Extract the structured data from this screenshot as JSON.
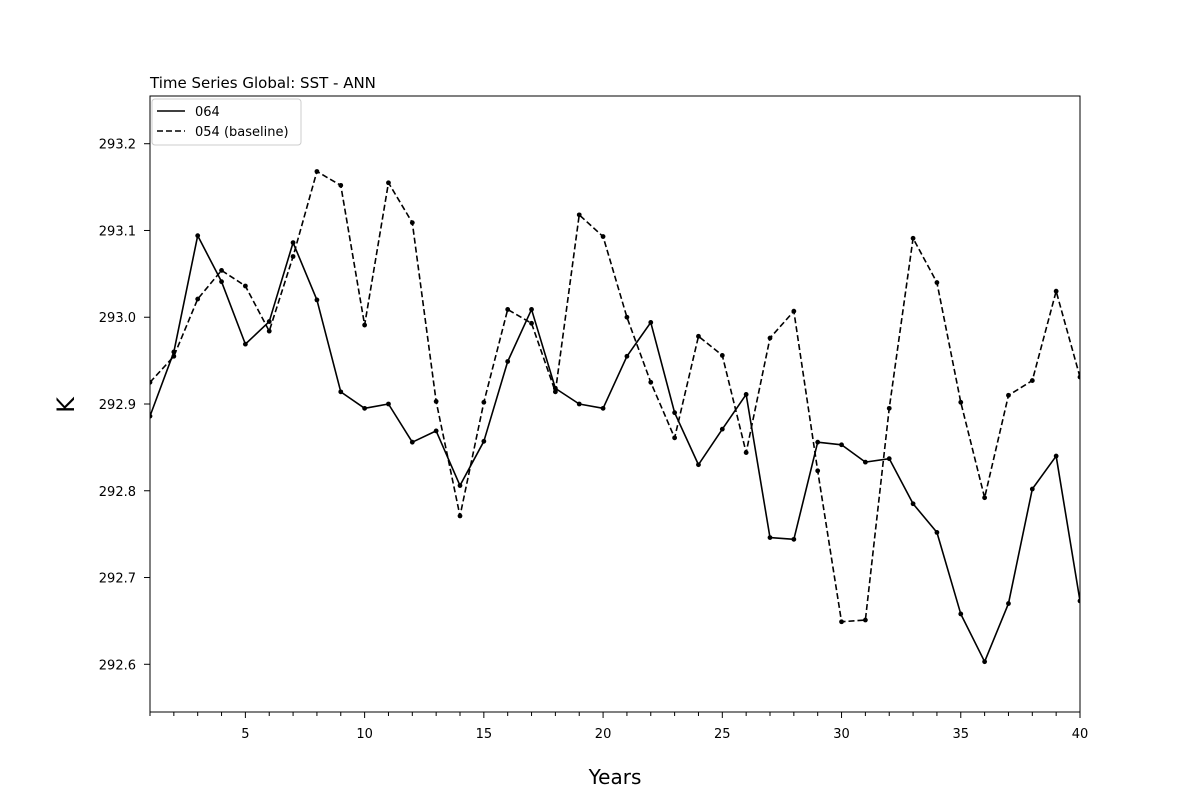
{
  "chart_data": {
    "type": "line",
    "title": "Time Series Global: SST - ANN",
    "xlabel": "Years",
    "ylabel": "K",
    "xlim": [
      1,
      40
    ],
    "ylim": [
      292.545,
      293.255
    ],
    "x_ticks": [
      5,
      10,
      15,
      20,
      25,
      30,
      35,
      40
    ],
    "y_ticks": [
      292.6,
      292.7,
      292.8,
      292.9,
      293.0,
      293.1,
      293.2
    ],
    "legend_position": "top-left",
    "grid": false,
    "x": [
      1,
      2,
      3,
      4,
      5,
      6,
      7,
      8,
      9,
      10,
      11,
      12,
      13,
      14,
      15,
      16,
      17,
      18,
      19,
      20,
      21,
      22,
      23,
      24,
      25,
      26,
      27,
      28,
      29,
      30,
      31,
      32,
      33,
      34,
      35,
      36,
      37,
      38,
      39,
      40
    ],
    "series": [
      {
        "name": "064",
        "style": "solid",
        "color": "#000000",
        "values": [
          292.886,
          292.96,
          293.094,
          293.041,
          292.969,
          292.995,
          293.086,
          293.02,
          292.914,
          292.895,
          292.9,
          292.856,
          292.869,
          292.806,
          292.857,
          292.949,
          293.009,
          292.918,
          292.9,
          292.895,
          292.955,
          292.994,
          292.89,
          292.83,
          292.871,
          292.911,
          292.746,
          292.744,
          292.856,
          292.853,
          292.833,
          292.837,
          292.785,
          292.752,
          292.658,
          292.603,
          292.67,
          292.802,
          292.84,
          292.673
        ]
      },
      {
        "name": "054 (baseline)",
        "style": "dashed",
        "color": "#000000",
        "values": [
          292.925,
          292.955,
          293.021,
          293.054,
          293.036,
          292.984,
          293.07,
          293.168,
          293.152,
          292.991,
          293.155,
          293.109,
          292.903,
          292.771,
          292.902,
          293.009,
          292.993,
          292.914,
          293.118,
          293.093,
          293.0,
          292.925,
          292.861,
          292.978,
          292.956,
          292.844,
          292.976,
          293.007,
          292.823,
          292.649,
          292.651,
          292.895,
          293.091,
          293.04,
          292.902,
          292.792,
          292.91,
          292.927,
          293.03,
          292.931
        ]
      }
    ]
  }
}
